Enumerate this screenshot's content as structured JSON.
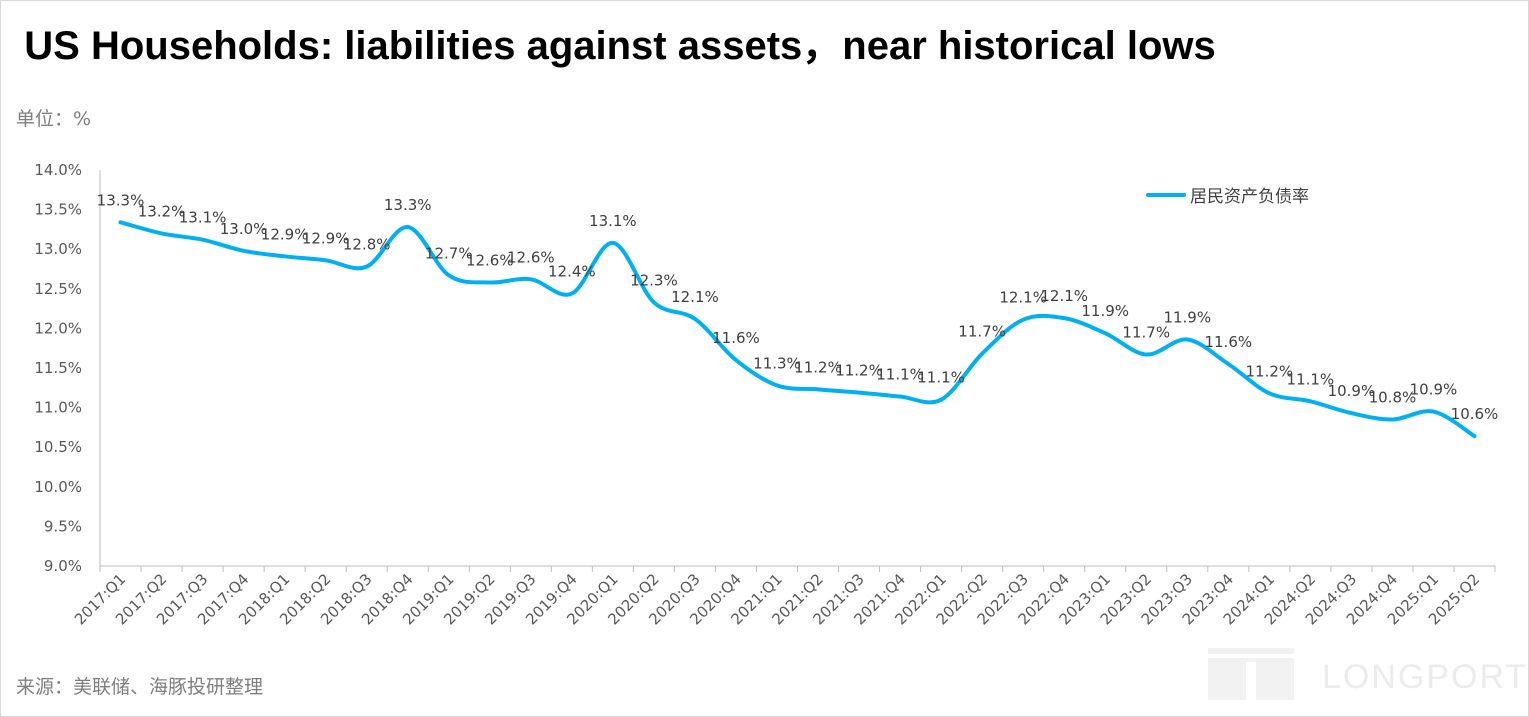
{
  "title": "US Households:  liabilities against assets，near historical lows",
  "unit_label": "单位：%",
  "source": "来源：美联储、海豚投研整理",
  "watermark": "LONGPORT",
  "colors": {
    "series": "#00b0f0",
    "axis": "#bfbfbf",
    "text": "#595959"
  },
  "chart_data": {
    "type": "line",
    "categories": [
      "2017:Q1",
      "2017:Q2",
      "2017:Q3",
      "2017:Q4",
      "2018:Q1",
      "2018:Q2",
      "2018:Q3",
      "2018:Q4",
      "2019:Q1",
      "2019:Q2",
      "2019:Q3",
      "2019:Q4",
      "2020:Q1",
      "2020:Q2",
      "2020:Q3",
      "2020:Q4",
      "2021:Q1",
      "2021:Q2",
      "2021:Q3",
      "2021:Q4",
      "2022:Q1",
      "2022:Q2",
      "2022:Q3",
      "2022:Q4",
      "2023:Q1",
      "2023:Q2",
      "2023:Q3",
      "2023:Q4",
      "2024:Q1",
      "2024:Q2",
      "2024:Q3",
      "2024:Q4",
      "2025:Q1",
      "2025:Q2"
    ],
    "series": [
      {
        "name": "居民资产负债率",
        "values": [
          13.34,
          13.2,
          13.12,
          12.98,
          12.91,
          12.86,
          12.78,
          13.28,
          12.67,
          12.58,
          12.62,
          12.44,
          13.08,
          12.33,
          12.12,
          11.6,
          11.28,
          11.23,
          11.19,
          11.14,
          11.1,
          11.68,
          12.11,
          12.13,
          11.94,
          11.67,
          11.86,
          11.55,
          11.18,
          11.08,
          10.93,
          10.85,
          10.95,
          10.64
        ],
        "labels": [
          "13.3%",
          "13.2%",
          "13.1%",
          "13.0%",
          "12.9%",
          "12.9%",
          "12.8%",
          "13.3%",
          "12.7%",
          "12.6%",
          "12.6%",
          "12.4%",
          "13.1%",
          "12.3%",
          "12.1%",
          "11.6%",
          "11.3%",
          "11.2%",
          "11.2%",
          "11.1%",
          "11.1%",
          "11.7%",
          "12.1%",
          "12.1%",
          "11.9%",
          "11.7%",
          "11.9%",
          "11.6%",
          "11.2%",
          "11.1%",
          "10.9%",
          "10.8%",
          "10.9%",
          "10.6%"
        ]
      }
    ],
    "y_ticks": [
      "9.0%",
      "9.5%",
      "10.0%",
      "10.5%",
      "11.0%",
      "11.5%",
      "12.0%",
      "12.5%",
      "13.0%",
      "13.5%",
      "14.0%"
    ],
    "ylim": [
      9.0,
      14.0
    ],
    "grid": false,
    "legend": "top-right"
  }
}
